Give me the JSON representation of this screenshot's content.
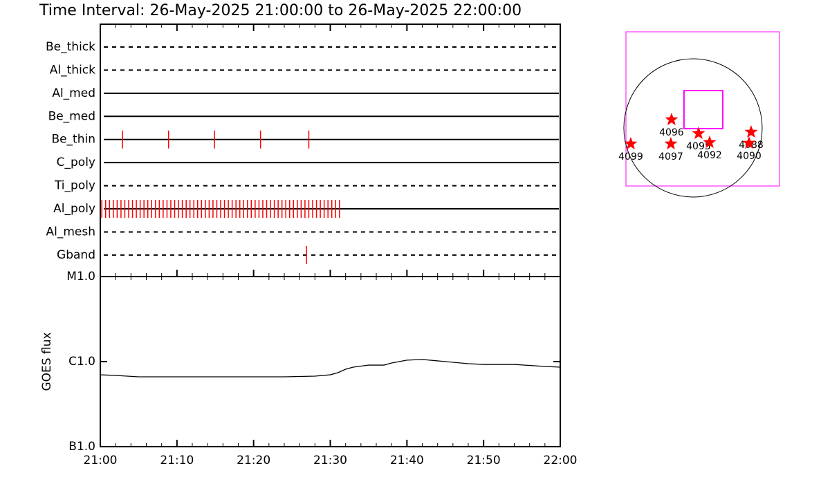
{
  "chart_data": [
    {
      "type": "timeline",
      "title": "Time Interval: 26-May-2025 21:00:00 to 26-May-2025 22:00:00",
      "xlim": [
        0,
        60
      ],
      "series": [
        {
          "name": "Be_thick",
          "style": "dashed",
          "color": "#ff0000",
          "x": []
        },
        {
          "name": "Al_thick",
          "style": "dashed",
          "color": "#ff0000",
          "x": []
        },
        {
          "name": "Al_med",
          "style": "solid",
          "color": "#ff0000",
          "x": []
        },
        {
          "name": "Be_med",
          "style": "solid",
          "color": "#ff0000",
          "x": []
        },
        {
          "name": "Be_thin",
          "style": "solid",
          "color": "#ff0000",
          "x": [
            2.9,
            8.9,
            14.9,
            20.9,
            27.2
          ]
        },
        {
          "name": "C_poly",
          "style": "solid",
          "color": "#ff0000",
          "x": []
        },
        {
          "name": "Ti_poly",
          "style": "dashed",
          "color": "#ff0000",
          "x": []
        },
        {
          "name": "Al_poly",
          "style": "solid",
          "color": "#ff0000",
          "x": [
            0.2,
            0.7,
            1.2,
            1.7,
            2.2,
            2.7,
            3.2,
            3.7,
            4.2,
            4.7,
            5.2,
            5.7,
            6.2,
            6.7,
            7.2,
            7.7,
            8.2,
            8.7,
            9.2,
            9.7,
            10.2,
            10.7,
            11.2,
            11.7,
            12.2,
            12.7,
            13.2,
            13.7,
            14.2,
            14.7,
            15.2,
            15.7,
            16.2,
            16.7,
            17.2,
            17.7,
            18.2,
            18.7,
            19.2,
            19.7,
            20.2,
            20.7,
            21.2,
            21.7,
            22.2,
            22.7,
            23.2,
            23.7,
            24.2,
            24.7,
            25.2,
            25.7,
            26.2,
            26.7,
            27.2,
            27.7,
            28.2,
            28.7,
            29.2,
            29.7,
            30.2,
            30.7,
            31.2
          ]
        },
        {
          "name": "Al_mesh",
          "style": "dashed",
          "color": "#ff0000",
          "x": []
        },
        {
          "name": "Gband",
          "style": "dashed",
          "color": "#ff0000",
          "x": [
            26.9
          ]
        }
      ]
    },
    {
      "type": "line",
      "ylabel": "GOES flux",
      "log": true,
      "color": "#000000",
      "x": [
        0,
        2,
        5,
        10,
        15,
        20,
        24,
        28,
        30,
        31,
        32,
        33,
        35,
        37,
        38,
        40,
        42,
        44,
        48,
        50,
        54,
        58,
        60
      ],
      "values": [
        7e-07,
        6.88e-07,
        6.62e-07,
        6.62e-07,
        6.62e-07,
        6.62e-07,
        6.62e-07,
        6.75e-07,
        7e-07,
        7.41e-07,
        8.14e-07,
        8.61e-07,
        9.1e-07,
        9.1e-07,
        9.63e-07,
        1.04e-06,
        1.06e-06,
        1.02e-06,
        9.46e-07,
        9.27e-07,
        9.27e-07,
        8.77e-07,
        8.61e-07
      ],
      "xlim": [
        0,
        60
      ],
      "xticks": [
        {
          "value": 0,
          "label": "21:00"
        },
        {
          "value": 10,
          "label": "21:10"
        },
        {
          "value": 20,
          "label": "21:20"
        },
        {
          "value": 30,
          "label": "21:30"
        },
        {
          "value": 40,
          "label": "21:40"
        },
        {
          "value": 50,
          "label": "21:50"
        },
        {
          "value": 60,
          "label": "22:00"
        }
      ],
      "ylim": [
        1e-07,
        1e-05
      ],
      "yticks": [
        {
          "value": 1e-05,
          "label": "M1.0"
        },
        {
          "value": 1e-06,
          "label": "C1.0"
        },
        {
          "value": 1e-07,
          "label": "B1.0"
        }
      ]
    },
    {
      "type": "scatter",
      "marker": "star",
      "color": "#ff0000",
      "box_color": "#ff00ff",
      "x": [
        -295,
        76,
        228,
        798,
        770,
        -855,
        -304
      ],
      "y": [
        114,
        -76,
        -200,
        -57,
        -209,
        -219,
        -219
      ],
      "labels": [
        "4096",
        "4095",
        "4092",
        "4088",
        "4090",
        "4099",
        "4097"
      ],
      "xlim": [
        -921,
        1188
      ],
      "ylim": [
        -798,
        1320
      ],
      "limb_radius": 950,
      "fov_x": [
        -124,
        408
      ],
      "fov_y": [
        -10,
        513
      ]
    }
  ]
}
